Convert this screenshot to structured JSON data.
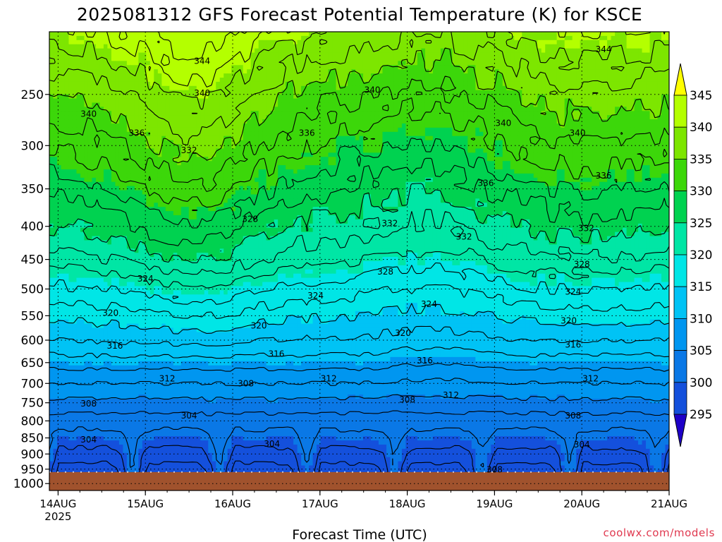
{
  "chart_data": {
    "type": "heatmap",
    "title": "2025081312 GFS Forecast Potential Temperature (K) for KSCE",
    "xlabel": "Forecast Time (UTC)",
    "ylabel": "",
    "x_ticks": [
      "14AUG",
      "15AUG",
      "16AUG",
      "17AUG",
      "18AUG",
      "19AUG",
      "20AUG",
      "21AUG"
    ],
    "x_year": "2025",
    "y_ticks": [
      250,
      300,
      350,
      400,
      450,
      500,
      550,
      600,
      650,
      700,
      750,
      800,
      850,
      900,
      950,
      1000
    ],
    "y_scale": "log-pressure",
    "x_range_days": [
      -0.1,
      7.0
    ],
    "y_range_hpa": [
      200,
      1025
    ],
    "surface_pressure_hpa": 960,
    "colorbar": {
      "levels": [
        295,
        300,
        305,
        310,
        315,
        320,
        325,
        330,
        335,
        340,
        345
      ],
      "labels": [
        "345",
        "340",
        "335",
        "330",
        "325",
        "320",
        "315",
        "310",
        "305",
        "300",
        "295"
      ],
      "colors": [
        "#1e00c8",
        "#0000ff",
        "#1450dc",
        "#0a78e6",
        "#0096f0",
        "#00c3f5",
        "#00e6e6",
        "#00e6a5",
        "#00d250",
        "#3cd70a",
        "#7de600",
        "#b4ff00",
        "#ffff00"
      ]
    },
    "contour_interval": 2,
    "contour_levels_labeled": [
      304,
      308,
      312,
      316,
      320,
      324,
      328,
      332,
      336,
      340,
      344
    ],
    "profile_reference_hpa": [
      1000,
      950,
      900,
      850,
      800,
      750,
      700,
      650,
      600,
      550,
      500,
      450,
      400,
      350,
      300,
      250,
      200
    ],
    "profile_reference_theta": [
      302.5,
      302.5,
      303.5,
      305,
      307,
      309.5,
      312,
      315,
      318,
      320.5,
      323.5,
      327,
      330,
      333,
      336.5,
      340,
      345
    ],
    "contour_labels": [
      {
        "text": "344",
        "x": 1.65,
        "p": 222
      },
      {
        "text": "344",
        "x": 6.25,
        "p": 213
      },
      {
        "text": "340",
        "x": 1.65,
        "p": 249
      },
      {
        "text": "340",
        "x": 3.6,
        "p": 246
      },
      {
        "text": "340",
        "x": 5.1,
        "p": 277
      },
      {
        "text": "340",
        "x": 5.95,
        "p": 287
      },
      {
        "text": "340",
        "x": 0.35,
        "p": 268
      },
      {
        "text": "336",
        "x": 0.9,
        "p": 287
      },
      {
        "text": "336",
        "x": 2.85,
        "p": 287
      },
      {
        "text": "336",
        "x": 4.9,
        "p": 343
      },
      {
        "text": "336",
        "x": 6.25,
        "p": 334
      },
      {
        "text": "332",
        "x": 1.5,
        "p": 305
      },
      {
        "text": "332",
        "x": 3.8,
        "p": 396
      },
      {
        "text": "332",
        "x": 4.65,
        "p": 415
      },
      {
        "text": "332",
        "x": 6.05,
        "p": 403
      },
      {
        "text": "328",
        "x": 2.2,
        "p": 390
      },
      {
        "text": "328",
        "x": 3.75,
        "p": 470
      },
      {
        "text": "328",
        "x": 6.0,
        "p": 458
      },
      {
        "text": "324",
        "x": 1.0,
        "p": 482
      },
      {
        "text": "324",
        "x": 2.95,
        "p": 512
      },
      {
        "text": "324",
        "x": 4.25,
        "p": 528
      },
      {
        "text": "324",
        "x": 5.9,
        "p": 505
      },
      {
        "text": "320",
        "x": 0.6,
        "p": 545
      },
      {
        "text": "320",
        "x": 2.3,
        "p": 570
      },
      {
        "text": "320",
        "x": 3.95,
        "p": 585
      },
      {
        "text": "320",
        "x": 5.85,
        "p": 560
      },
      {
        "text": "316",
        "x": 0.65,
        "p": 612
      },
      {
        "text": "316",
        "x": 2.5,
        "p": 630
      },
      {
        "text": "316",
        "x": 4.2,
        "p": 645
      },
      {
        "text": "316",
        "x": 5.9,
        "p": 610
      },
      {
        "text": "312",
        "x": 1.25,
        "p": 688
      },
      {
        "text": "312",
        "x": 3.1,
        "p": 688
      },
      {
        "text": "312",
        "x": 4.5,
        "p": 730
      },
      {
        "text": "312",
        "x": 6.1,
        "p": 688
      },
      {
        "text": "308",
        "x": 0.35,
        "p": 752
      },
      {
        "text": "308",
        "x": 2.15,
        "p": 700
      },
      {
        "text": "308",
        "x": 4.0,
        "p": 742
      },
      {
        "text": "308",
        "x": 5.9,
        "p": 785
      },
      {
        "text": "308",
        "x": 5.0,
        "p": 952
      },
      {
        "text": "304",
        "x": 0.35,
        "p": 855
      },
      {
        "text": "304",
        "x": 1.5,
        "p": 785
      },
      {
        "text": "304",
        "x": 2.45,
        "p": 868
      },
      {
        "text": "304",
        "x": 6.0,
        "p": 870
      }
    ]
  },
  "credit": "coolwx.com/models"
}
